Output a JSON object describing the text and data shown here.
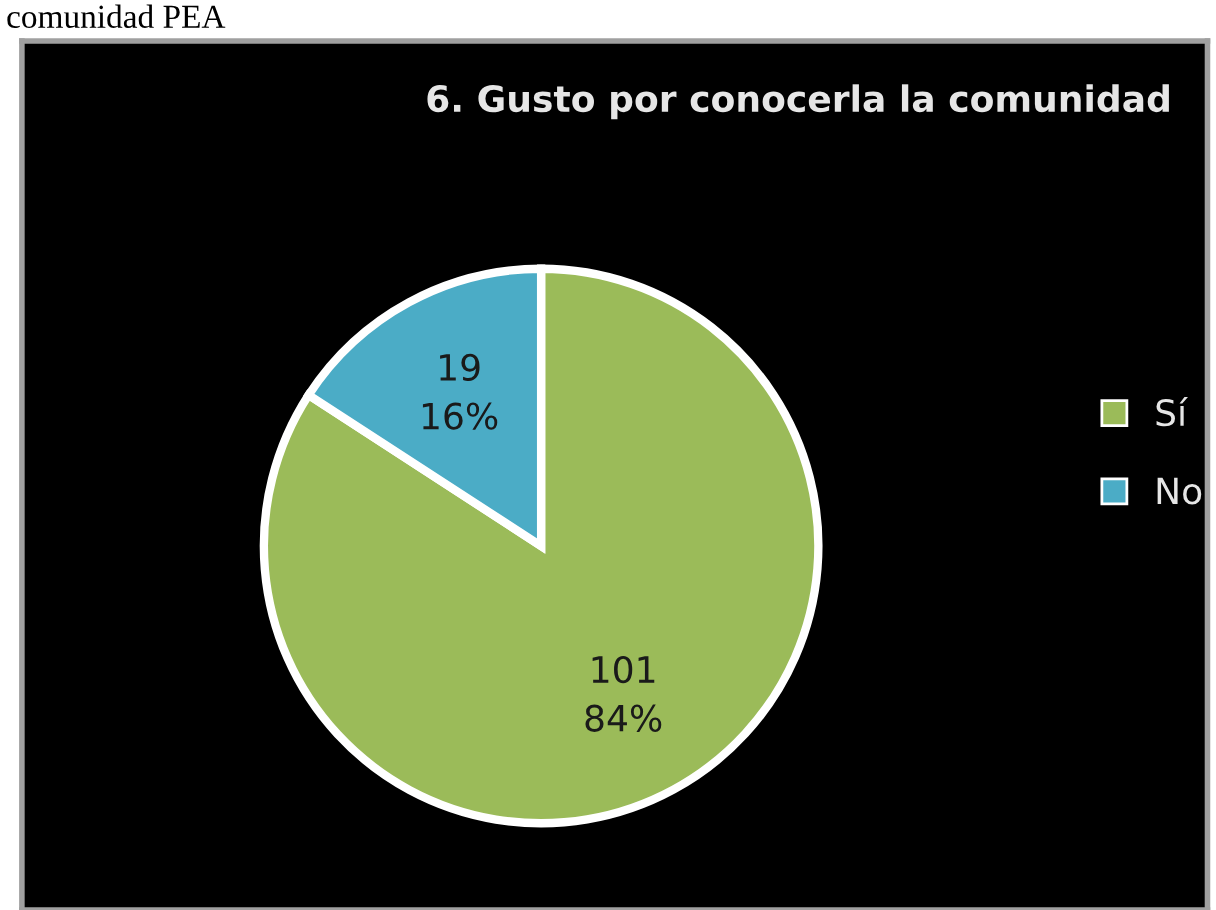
{
  "chart_data": {
    "type": "pie",
    "title": "6. Gusto por conocerla la comunidad",
    "categories": [
      "Sí",
      "No"
    ],
    "values": [
      101,
      19
    ],
    "colors": [
      "#9bbb59",
      "#4bacc6"
    ],
    "value_labels": [
      "101\n84%",
      "19\n16%"
    ],
    "legend": "right",
    "annotations": [
      "comunidad PEA"
    ]
  }
}
